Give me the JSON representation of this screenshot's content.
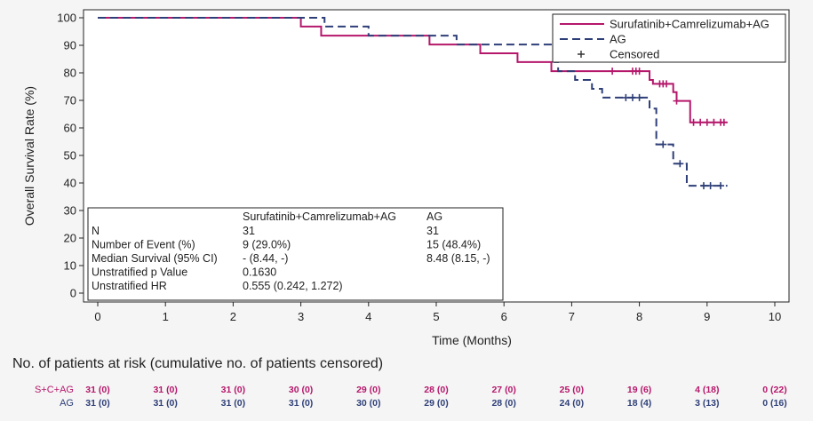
{
  "chart_data": {
    "type": "line",
    "xlabel": "Time (Months)",
    "ylabel": "Overall Survival Rate (%)",
    "xlim": [
      0,
      10
    ],
    "ylim": [
      0,
      100
    ],
    "xticks": [
      0,
      1,
      2,
      3,
      4,
      5,
      6,
      7,
      8,
      9,
      10
    ],
    "yticks": [
      0,
      10,
      20,
      30,
      40,
      50,
      60,
      70,
      80,
      90,
      100
    ],
    "legend": {
      "placement": "top-right",
      "entries": [
        {
          "label": "Surufatinib+Camrelizumab+AG",
          "style": "solid",
          "color": "#b5176b"
        },
        {
          "label": "AG",
          "style": "dashed",
          "color": "#2e3f78"
        },
        {
          "label": "Censored",
          "style": "plus",
          "color": "#333333"
        }
      ]
    },
    "series": [
      {
        "name": "Surufatinib+Camrelizumab+AG",
        "color": "#b5176b",
        "style": "solid",
        "steps": [
          [
            0,
            100
          ],
          [
            3.0,
            96.8
          ],
          [
            3.3,
            93.5
          ],
          [
            4.9,
            90.3
          ],
          [
            5.65,
            87.1
          ],
          [
            6.2,
            83.9
          ],
          [
            6.7,
            80.6
          ],
          [
            8.15,
            77.4
          ],
          [
            8.2,
            76.0
          ],
          [
            8.5,
            73.0
          ],
          [
            8.55,
            69.8
          ],
          [
            8.75,
            62.0
          ],
          [
            9.3,
            62.0
          ]
        ],
        "censored": [
          [
            7.6,
            80.6
          ],
          [
            7.9,
            80.6
          ],
          [
            7.95,
            80.6
          ],
          [
            8.0,
            80.6
          ],
          [
            8.3,
            76.0
          ],
          [
            8.35,
            76.0
          ],
          [
            8.4,
            76.0
          ],
          [
            8.55,
            69.8
          ],
          [
            8.8,
            62.0
          ],
          [
            8.9,
            62.0
          ],
          [
            9.0,
            62.0
          ],
          [
            9.1,
            62.0
          ],
          [
            9.2,
            62.0
          ],
          [
            9.25,
            62.0
          ]
        ]
      },
      {
        "name": "AG",
        "color": "#2e3f78",
        "style": "dashed",
        "steps": [
          [
            0,
            100
          ],
          [
            3.35,
            96.8
          ],
          [
            4.0,
            93.5
          ],
          [
            5.3,
            90.3
          ],
          [
            6.75,
            87.1
          ],
          [
            6.75,
            83.9
          ],
          [
            6.8,
            80.6
          ],
          [
            7.05,
            77.4
          ],
          [
            7.3,
            74.2
          ],
          [
            7.45,
            71.0
          ],
          [
            8.15,
            67.0
          ],
          [
            8.25,
            60.0
          ],
          [
            8.25,
            54.0
          ],
          [
            8.5,
            47.0
          ],
          [
            8.7,
            39.0
          ],
          [
            9.3,
            39.0
          ]
        ],
        "censored": [
          [
            7.8,
            71.0
          ],
          [
            7.9,
            71.0
          ],
          [
            8.0,
            71.0
          ],
          [
            8.35,
            54.0
          ],
          [
            8.6,
            47.0
          ],
          [
            8.95,
            39.0
          ],
          [
            9.05,
            39.0
          ],
          [
            9.2,
            39.0
          ]
        ]
      }
    ],
    "stats_table": {
      "header": [
        "",
        "Surufatinib+Camrelizumab+AG",
        "AG"
      ],
      "rows": [
        [
          "N",
          "31",
          "31"
        ],
        [
          "Number of Event (%)",
          "9 (29.0%)",
          "15 (48.4%)"
        ],
        [
          "Median Survival (95% CI)",
          "- (8.44, -)",
          "8.48 (8.15, -)"
        ],
        [
          "Unstratified p Value",
          "0.1630",
          ""
        ],
        [
          "Unstratified HR",
          "0.555 (0.242, 1.272)",
          ""
        ]
      ]
    }
  },
  "risk_table": {
    "title": "No. of patients at risk (cumulative no. of patients censored)",
    "rows": [
      {
        "label": "S+C+AG",
        "color": "#b5176b",
        "values": [
          "31 (0)",
          "31 (0)",
          "31 (0)",
          "30 (0)",
          "29 (0)",
          "28 (0)",
          "27 (0)",
          "25 (0)",
          "19 (6)",
          "4 (18)",
          "0 (22)"
        ]
      },
      {
        "label": "AG",
        "color": "#2e3f78",
        "values": [
          "31 (0)",
          "31 (0)",
          "31 (0)",
          "31 (0)",
          "30 (0)",
          "29 (0)",
          "28 (0)",
          "24 (0)",
          "18 (4)",
          "3 (13)",
          "0 (16)"
        ]
      }
    ]
  }
}
